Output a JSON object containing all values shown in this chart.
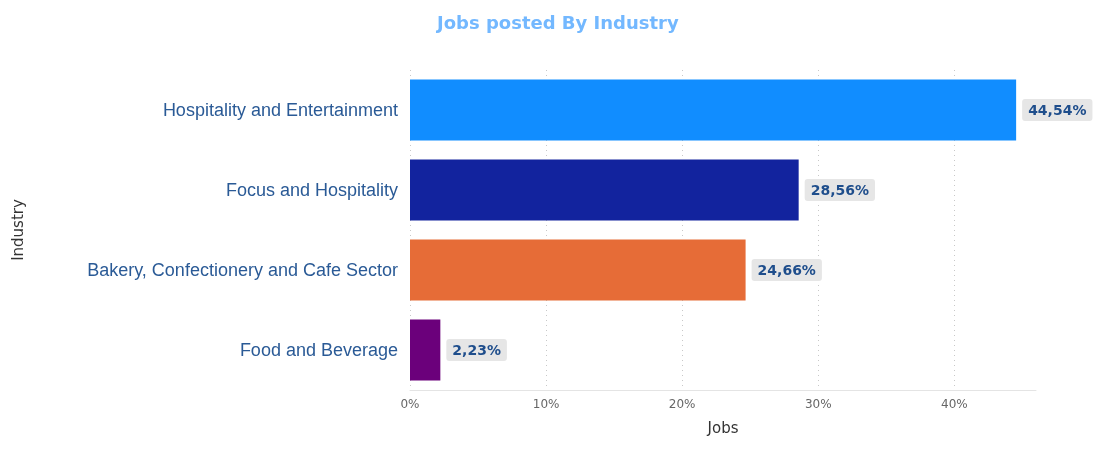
{
  "chart_data": {
    "type": "bar",
    "orientation": "horizontal",
    "title": "Jobs posted By Industry",
    "xlabel": "Jobs",
    "ylabel": "Industry",
    "categories": [
      "Hospitality and Entertainment",
      "Focus and Hospitality",
      "Bakery, Confectionery and Cafe Sector",
      "Food and Beverage"
    ],
    "values": [
      44.54,
      28.56,
      24.66,
      2.23
    ],
    "colors": [
      "#118dff",
      "#12239e",
      "#e66c37",
      "#6b007b"
    ],
    "value_labels": [
      "44,54%",
      "28,56%",
      "24,66%",
      "2,23%"
    ],
    "xlim": [
      0,
      46
    ],
    "xticks": [
      {
        "value": 0,
        "label": "0%"
      },
      {
        "value": 10,
        "label": "10%"
      },
      {
        "value": 20,
        "label": "20%"
      },
      {
        "value": 30,
        "label": "30%"
      },
      {
        "value": 40,
        "label": "40%"
      }
    ],
    "grid": "x",
    "line_style": "dotted"
  }
}
